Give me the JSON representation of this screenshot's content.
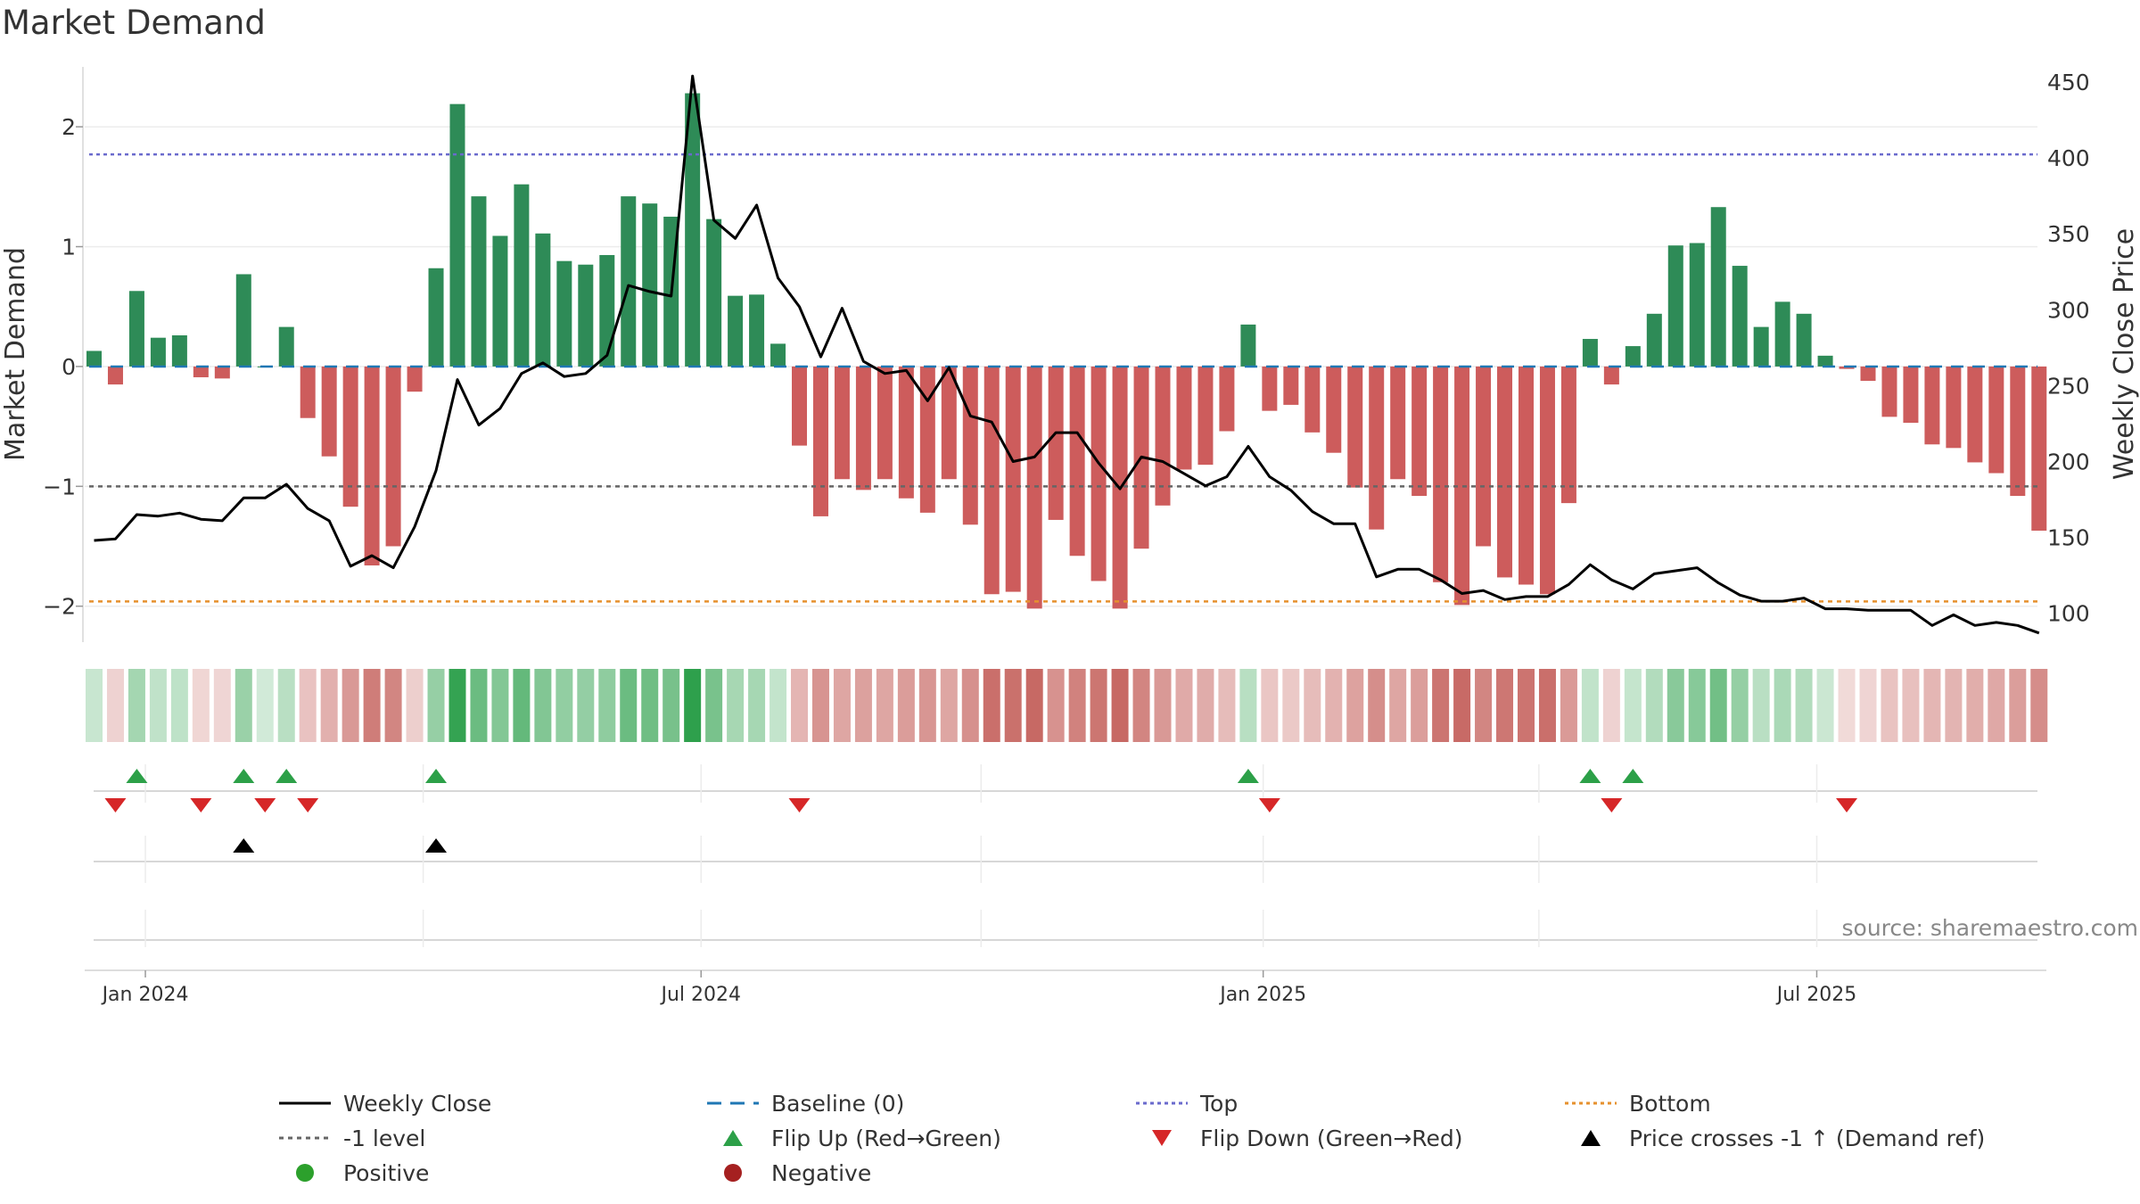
{
  "chart_data": {
    "type": "bar",
    "title": "Market Demand",
    "ylabel_left": "Market Demand",
    "ylabel_right": "Weekly Close Price",
    "ylim_left": [
      -2.3,
      2.5
    ],
    "ylim_right": [
      81,
      460
    ],
    "left_ticks": [
      {
        "value": 2,
        "label": "2"
      },
      {
        "value": 1,
        "label": "1"
      },
      {
        "value": 0,
        "label": "0"
      },
      {
        "value": -1,
        "label": "−1"
      },
      {
        "value": -2,
        "label": "−2"
      }
    ],
    "right_ticks": [
      {
        "value": 450,
        "label": "450"
      },
      {
        "value": 400,
        "label": "400"
      },
      {
        "value": 350,
        "label": "350"
      },
      {
        "value": 300,
        "label": "300"
      },
      {
        "value": 250,
        "label": "250"
      },
      {
        "value": 200,
        "label": "200"
      },
      {
        "value": 150,
        "label": "150"
      },
      {
        "value": 100,
        "label": "100"
      }
    ],
    "date_ticks": [
      {
        "index": 2.4,
        "label": "Jan 2024"
      },
      {
        "index": 28.4,
        "label": "Jul 2024"
      },
      {
        "index": 54.7,
        "label": "Jan 2025"
      },
      {
        "index": 80.6,
        "label": "Jul 2025"
      }
    ],
    "levels": {
      "baseline": 0,
      "top": 1.77,
      "minus_one": -1,
      "bottom": -1.96
    },
    "demand": [
      0.13,
      -0.15,
      0.63,
      0.24,
      0.26,
      -0.09,
      -0.1,
      0.77,
      0.0,
      0.33,
      -0.43,
      -0.75,
      -1.17,
      -1.66,
      -1.5,
      -0.21,
      0.82,
      2.19,
      1.42,
      1.09,
      1.52,
      1.11,
      0.88,
      0.85,
      0.93,
      1.42,
      1.36,
      1.25,
      2.28,
      1.23,
      0.59,
      0.6,
      0.19,
      -0.66,
      -1.25,
      -0.94,
      -1.03,
      -0.94,
      -1.1,
      -1.22,
      -0.94,
      -1.32,
      -1.9,
      -1.88,
      -2.02,
      -1.28,
      -1.58,
      -1.79,
      -2.02,
      -1.52,
      -1.16,
      -0.86,
      -0.82,
      -0.54,
      0.35,
      -0.37,
      -0.32,
      -0.55,
      -0.72,
      -1.01,
      -1.36,
      -0.94,
      -1.08,
      -1.8,
      -1.99,
      -1.5,
      -1.76,
      -1.82,
      -1.9,
      -1.14,
      0.23,
      -0.15,
      0.17,
      0.44,
      1.01,
      1.03,
      1.33,
      0.84,
      0.33,
      0.54,
      0.44,
      0.09,
      -0.02,
      -0.12,
      -0.42,
      -0.47,
      -0.65,
      -0.68,
      -0.8,
      -0.89,
      -1.08,
      -1.37
    ],
    "price": [
      148,
      149,
      165,
      164,
      166,
      162,
      161,
      176,
      176,
      185,
      169,
      161,
      131,
      138,
      130,
      157,
      194,
      254,
      224,
      235,
      258,
      265,
      256,
      258,
      270,
      316,
      312,
      309,
      454,
      359,
      347,
      369,
      321,
      302,
      269,
      301,
      266,
      258,
      260,
      240,
      262,
      230,
      226,
      200,
      203,
      219,
      219,
      199,
      182,
      203,
      200,
      192,
      184,
      190,
      210,
      190,
      181,
      167,
      159,
      159,
      124,
      129,
      129,
      122,
      113,
      115,
      109,
      111,
      111,
      119,
      132,
      122,
      116,
      126,
      128,
      130,
      120,
      112,
      108,
      108,
      110,
      103,
      103,
      102,
      102,
      102,
      92,
      99,
      92,
      94,
      92,
      87
    ],
    "flip_up_index": [
      2,
      7,
      9,
      16,
      54,
      70,
      72
    ],
    "flip_down_index": [
      1,
      5,
      8,
      10,
      33,
      55,
      71,
      82
    ],
    "price_cross_up_index": [
      7,
      16
    ],
    "month_grid_index": [
      2.4,
      15.4,
      28.4,
      41.5,
      54.7,
      67.6,
      80.6
    ]
  },
  "colors": {
    "positive": "#2e8b57",
    "negative": "#cd5c5c",
    "price_line": "#000000",
    "baseline": "#1f77b4",
    "top": "#6a6acd",
    "minus_one": "#666666",
    "bottom": "#e6912e",
    "flip_up": "#2ca048",
    "flip_down": "#d62728",
    "cross": "#000000",
    "dot_positive": "#2ca02c",
    "dot_negative": "#a52020"
  },
  "legend": [
    {
      "key": "close",
      "label": "Weekly Close"
    },
    {
      "key": "baseline",
      "label": "Baseline (0)"
    },
    {
      "key": "top",
      "label": "Top"
    },
    {
      "key": "bottom",
      "label": "Bottom"
    },
    {
      "key": "minus_one",
      "label": "-1 level"
    },
    {
      "key": "flip_up",
      "label": "Flip Up (Red→Green)"
    },
    {
      "key": "flip_down",
      "label": "Flip Down (Green→Red)"
    },
    {
      "key": "cross",
      "label": "Price crosses -1 ↑ (Demand ref)"
    },
    {
      "key": "positive",
      "label": "Positive"
    },
    {
      "key": "negative",
      "label": "Negative"
    }
  ],
  "source_label": "source: sharemaestro.com"
}
